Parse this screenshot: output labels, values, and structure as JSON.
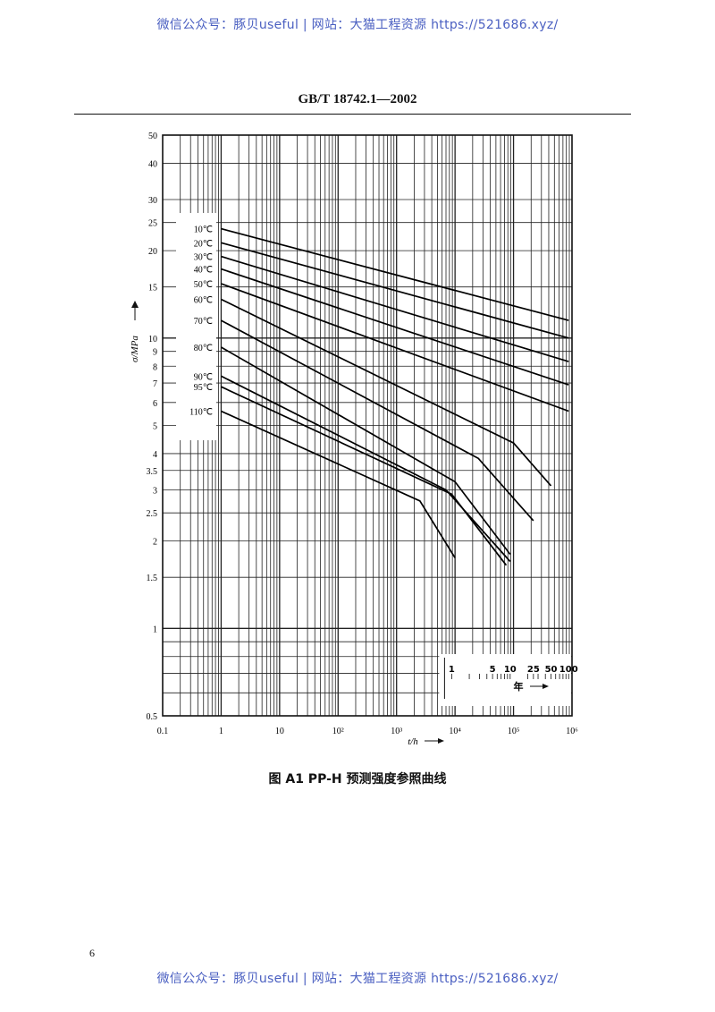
{
  "watermark": {
    "top": "微信公众号：豚贝useful | 网站：大猫工程资源 https://521686.xyz/",
    "bottom": "微信公众号：豚贝useful | 网站：大猫工程资源 https://521686.xyz/"
  },
  "document": {
    "header": "GB/T 18742.1—2002",
    "caption": "图 A1  PP-H 预测强度参照曲线",
    "page_number": "6"
  },
  "chart_data": {
    "type": "line",
    "x_scale": "log",
    "y_scale": "log",
    "xlim": [
      0.1,
      1000000
    ],
    "ylim": [
      0.5,
      50
    ],
    "xlabel": "t/h",
    "ylabel": "σ/MPa",
    "x_ticks": [
      {
        "value": 0.1,
        "label": "0.1"
      },
      {
        "value": 1,
        "label": "1"
      },
      {
        "value": 10,
        "label": "10"
      },
      {
        "value": 100,
        "label": "10²"
      },
      {
        "value": 1000,
        "label": "10³"
      },
      {
        "value": 10000,
        "label": "10⁴"
      },
      {
        "value": 100000,
        "label": "10⁵"
      },
      {
        "value": 1000000,
        "label": "10⁶"
      }
    ],
    "y_ticks": [
      {
        "value": 50,
        "label": "50"
      },
      {
        "value": 40,
        "label": "40"
      },
      {
        "value": 30,
        "label": "30"
      },
      {
        "value": 25,
        "label": "25"
      },
      {
        "value": 20,
        "label": "20"
      },
      {
        "value": 15,
        "label": "15"
      },
      {
        "value": 10,
        "label": "10"
      },
      {
        "value": 9,
        "label": "9"
      },
      {
        "value": 8,
        "label": "8"
      },
      {
        "value": 7,
        "label": "7"
      },
      {
        "value": 6,
        "label": "6"
      },
      {
        "value": 5,
        "label": "5"
      },
      {
        "value": 4,
        "label": "4"
      },
      {
        "value": 3.5,
        "label": "3.5"
      },
      {
        "value": 3,
        "label": "3"
      },
      {
        "value": 2.5,
        "label": "2.5"
      },
      {
        "value": 2,
        "label": "2"
      },
      {
        "value": 1.5,
        "label": "1.5"
      },
      {
        "value": 1,
        "label": "1"
      },
      {
        "value": 0.5,
        "label": "0.5"
      }
    ],
    "year_axis": {
      "label": "年",
      "ticks": [
        {
          "years": 1,
          "label": "1"
        },
        {
          "years": 5,
          "label": "5"
        },
        {
          "years": 10,
          "label": "10"
        },
        {
          "years": 25,
          "label": "25"
        },
        {
          "years": 50,
          "label": "50"
        },
        {
          "years": 100,
          "label": "100"
        }
      ]
    },
    "grid": true,
    "series": [
      {
        "name": "10℃",
        "points": [
          [
            1,
            23.8
          ],
          [
            876000,
            11.5
          ]
        ]
      },
      {
        "name": "20℃",
        "points": [
          [
            1,
            21.3
          ],
          [
            876000,
            10.0
          ]
        ]
      },
      {
        "name": "30℃",
        "points": [
          [
            1,
            19.1
          ],
          [
            876000,
            8.3
          ]
        ]
      },
      {
        "name": "40℃",
        "points": [
          [
            1,
            17.3
          ],
          [
            876000,
            6.9
          ]
        ]
      },
      {
        "name": "50℃",
        "points": [
          [
            1,
            15.4
          ],
          [
            876000,
            5.6
          ]
        ]
      },
      {
        "name": "60℃",
        "points": [
          [
            1,
            13.6
          ],
          [
            100000,
            4.35
          ],
          [
            438000,
            3.1
          ]
        ]
      },
      {
        "name": "70℃",
        "points": [
          [
            1,
            11.5
          ],
          [
            25000,
            3.85
          ],
          [
            219000,
            2.35
          ]
        ]
      },
      {
        "name": "80℃",
        "points": [
          [
            1,
            9.3
          ],
          [
            10000,
            3.2
          ],
          [
            87600,
            1.8
          ]
        ]
      },
      {
        "name": "90℃",
        "points": [
          [
            1,
            7.4
          ],
          [
            7000,
            3.0
          ],
          [
            87600,
            1.7
          ]
        ]
      },
      {
        "name": "95℃",
        "points": [
          [
            1,
            6.8
          ],
          [
            8760,
            2.9
          ],
          [
            75000,
            1.65
          ]
        ]
      },
      {
        "name": "110℃",
        "points": [
          [
            1,
            5.6
          ],
          [
            2500,
            2.75
          ],
          [
            10000,
            1.75
          ]
        ]
      }
    ]
  }
}
